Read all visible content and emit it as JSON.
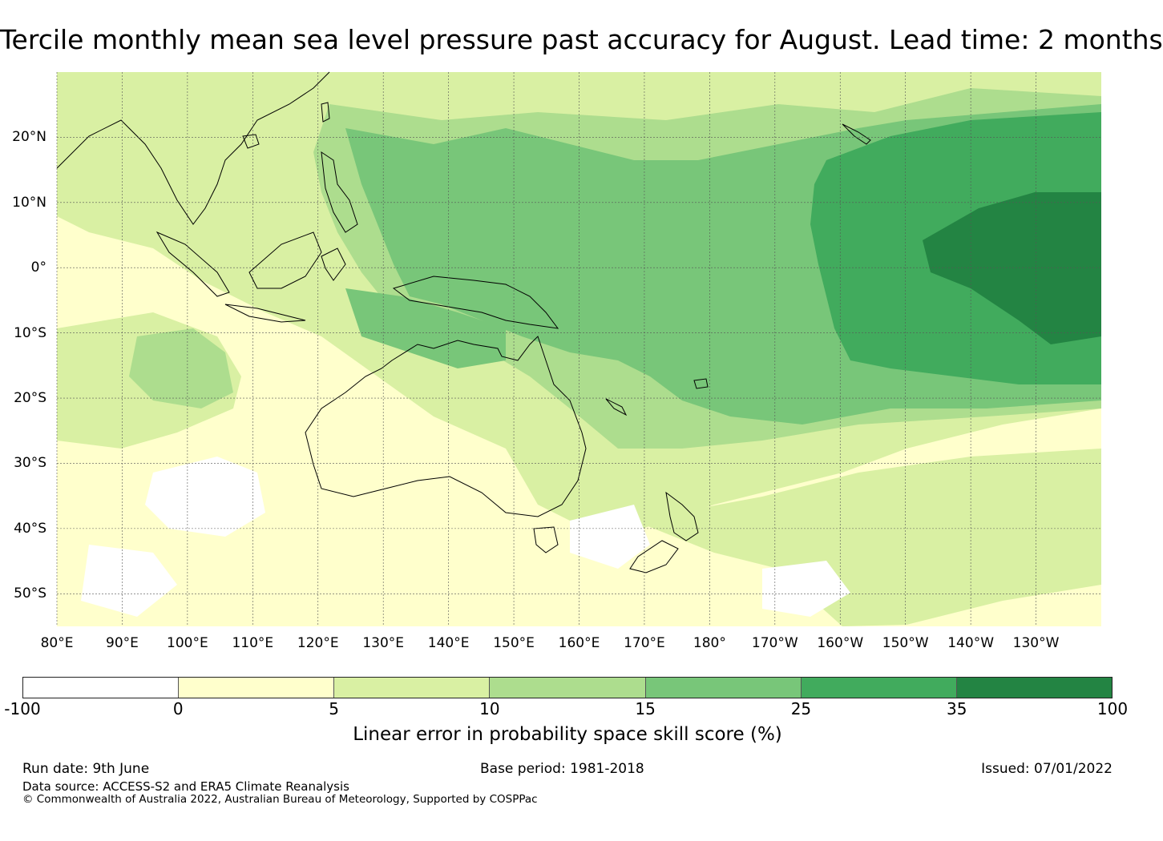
{
  "title": "Tercile monthly mean sea level pressure past accuracy for August. Lead time: 2 months",
  "map": {
    "lon_range": [
      80,
      240
    ],
    "lat_range": [
      -55,
      30
    ],
    "lat_ticks": [
      {
        "value": 20,
        "label": "20°N"
      },
      {
        "value": 10,
        "label": "10°N"
      },
      {
        "value": 0,
        "label": "0°"
      },
      {
        "value": -10,
        "label": "10°S"
      },
      {
        "value": -20,
        "label": "20°S"
      },
      {
        "value": -30,
        "label": "30°S"
      },
      {
        "value": -40,
        "label": "40°S"
      },
      {
        "value": -50,
        "label": "50°S"
      }
    ],
    "lon_ticks": [
      {
        "value": 80,
        "label": "80°E"
      },
      {
        "value": 90,
        "label": "90°E"
      },
      {
        "value": 100,
        "label": "100°E"
      },
      {
        "value": 110,
        "label": "110°E"
      },
      {
        "value": 120,
        "label": "120°E"
      },
      {
        "value": 130,
        "label": "130°E"
      },
      {
        "value": 140,
        "label": "140°E"
      },
      {
        "value": 150,
        "label": "150°E"
      },
      {
        "value": 160,
        "label": "160°E"
      },
      {
        "value": 170,
        "label": "170°E"
      },
      {
        "value": 180,
        "label": "180°"
      },
      {
        "value": 190,
        "label": "170°W"
      },
      {
        "value": 200,
        "label": "160°W"
      },
      {
        "value": 210,
        "label": "150°W"
      },
      {
        "value": 220,
        "label": "140°W"
      },
      {
        "value": 230,
        "label": "130°W"
      }
    ],
    "grid": true,
    "grid_color": "#555555"
  },
  "colorbar": {
    "label": "Linear error in probability space skill score (%)",
    "ticks": [
      "-100",
      "0",
      "5",
      "10",
      "15",
      "25",
      "35",
      "100"
    ],
    "colors": [
      "#ffffff",
      "#ffffcc",
      "#d9f0a3",
      "#addd8e",
      "#78c679",
      "#41ab5d",
      "#238443"
    ]
  },
  "footer": {
    "run_date": "Run date: 9th June",
    "base_period": "Base period: 1981-2018",
    "issued": "Issued: 07/01/2022",
    "data_source": "Data source: ACCESS-S2 and ERA5 Climate Reanalysis",
    "copyright": "© Commonwealth of Australia 2022, Australian Bureau of Meteorology, Supported by COSPPac"
  }
}
